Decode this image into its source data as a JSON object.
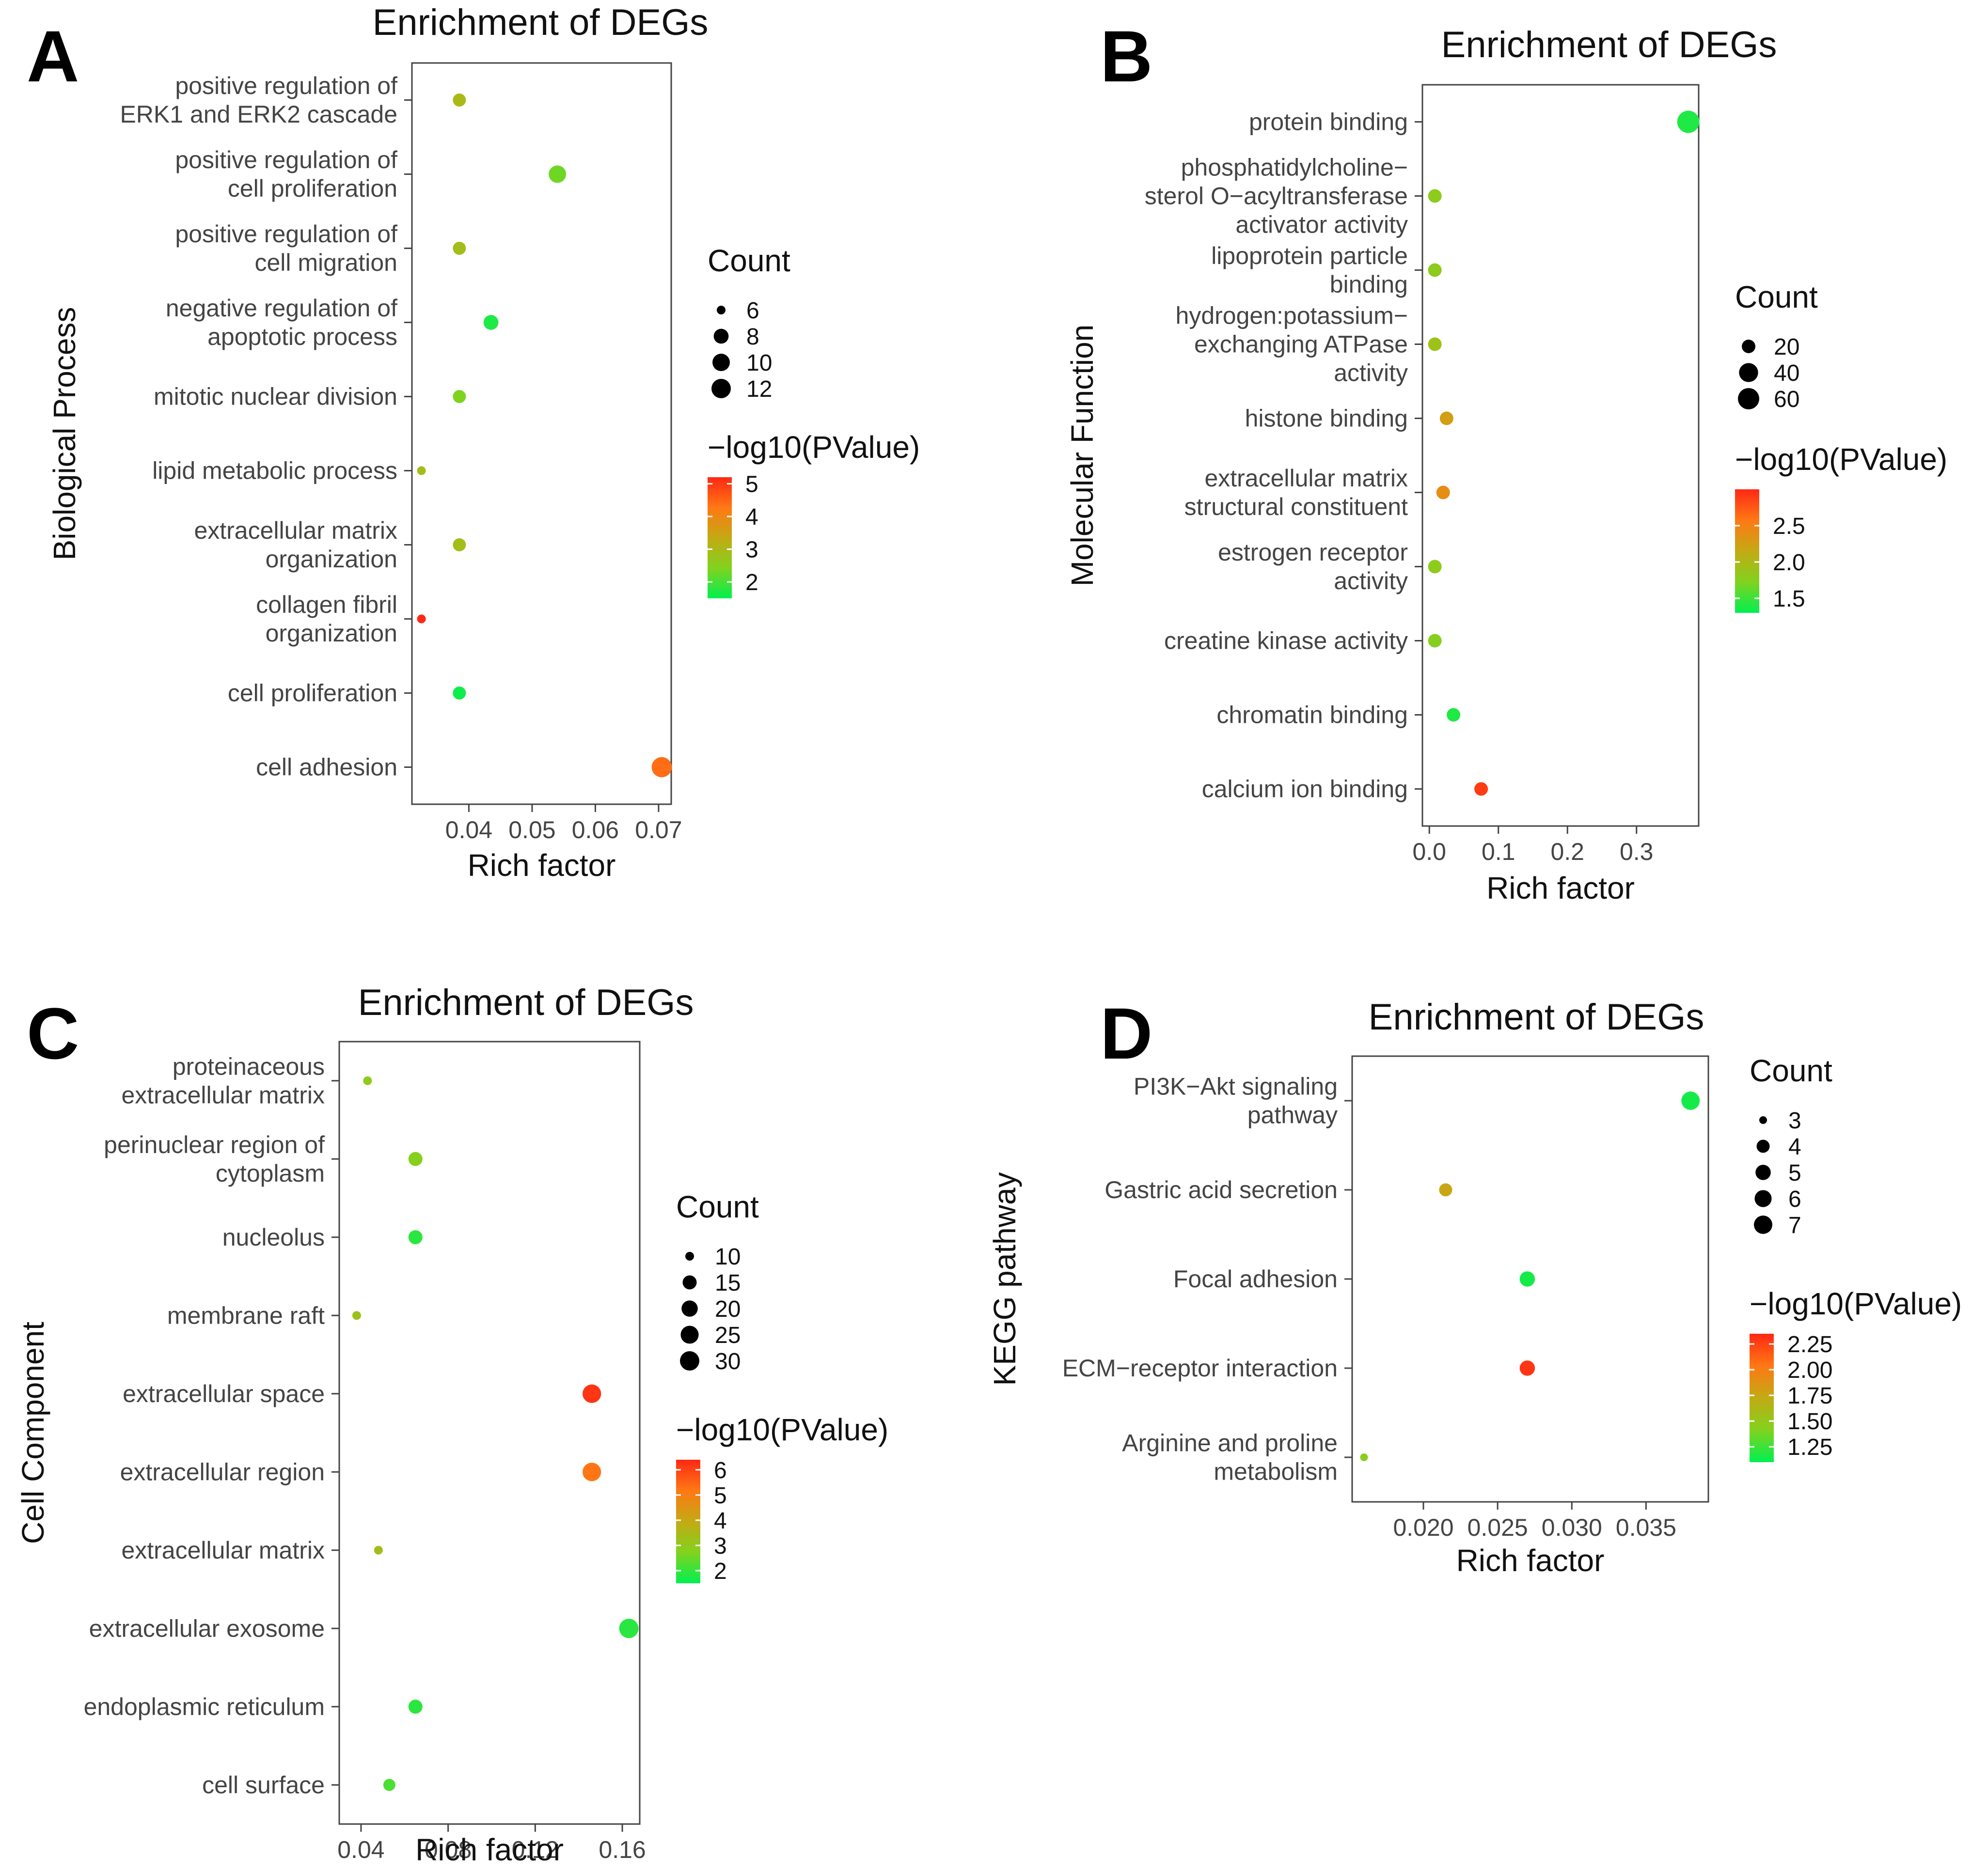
{
  "chart_data": [
    {
      "panel": "A",
      "type": "scatter",
      "title": "Enrichment of DEGs",
      "xlabel": "Rich factor",
      "ylabel": "Biological Process",
      "xlim": [
        0.031,
        0.072
      ],
      "xticks": [
        0.04,
        0.05,
        0.06,
        0.07
      ],
      "xtick_labels": [
        "0.04",
        "0.05",
        "0.06",
        "0.07"
      ],
      "categories": [
        [
          "positive regulation of",
          "ERK1 and ERK2 cascade"
        ],
        [
          "positive regulation of",
          "cell proliferation"
        ],
        [
          "positive regulation of",
          "cell migration"
        ],
        [
          "negative regulation of",
          "apoptotic process"
        ],
        [
          "mitotic nuclear division"
        ],
        [
          "lipid metabolic process"
        ],
        [
          "extracellular matrix",
          "organization"
        ],
        [
          "collagen fibril",
          "organization"
        ],
        [
          "cell proliferation"
        ],
        [
          "cell adhesion"
        ]
      ],
      "rich_factor": [
        0.0385,
        0.054,
        0.0385,
        0.0435,
        0.0385,
        0.0325,
        0.0385,
        0.0325,
        0.0385,
        0.0705
      ],
      "count": [
        7,
        10,
        7,
        8,
        7,
        5,
        7,
        5,
        7,
        13
      ],
      "neg_log10_p": [
        3.0,
        2.3,
        2.9,
        1.7,
        2.4,
        2.9,
        2.9,
        5.2,
        1.6,
        4.4
      ],
      "size_legend": {
        "title": "Count",
        "values": [
          6,
          8,
          10,
          12
        ],
        "labels": [
          "6",
          "8",
          "10",
          "12"
        ]
      },
      "color_legend": {
        "title": "−log10(PValue)",
        "min": 1.5,
        "max": 5.2,
        "ticks": [
          5,
          4,
          3,
          2
        ],
        "tick_labels": [
          "5",
          "4",
          "3",
          "2"
        ]
      }
    },
    {
      "panel": "B",
      "type": "scatter",
      "title": "Enrichment of DEGs",
      "xlabel": "Rich factor",
      "ylabel": "Molecular Function",
      "xlim": [
        -0.01,
        0.39
      ],
      "xticks": [
        0.0,
        0.1,
        0.2,
        0.3
      ],
      "xtick_labels": [
        "0.0",
        "0.1",
        "0.2",
        "0.3"
      ],
      "categories": [
        [
          "protein binding"
        ],
        [
          "phosphatidylcholine−",
          "sterol O−acyltransferase",
          "activator activity"
        ],
        [
          "lipoprotein particle",
          "binding"
        ],
        [
          "hydrogen:potassium−",
          "exchanging ATPase",
          "activity"
        ],
        [
          "histone binding"
        ],
        [
          "extracellular matrix",
          "structural constituent"
        ],
        [
          "estrogen receptor",
          "activity"
        ],
        [
          "creatine kinase activity"
        ],
        [
          "chromatin binding"
        ],
        [
          "calcium ion binding"
        ]
      ],
      "rich_factor": [
        0.375,
        0.008,
        0.008,
        0.008,
        0.025,
        0.02,
        0.008,
        0.008,
        0.035,
        0.075
      ],
      "count": [
        70,
        3,
        3,
        3,
        5,
        4,
        3,
        3,
        8,
        14
      ],
      "neg_log10_p": [
        1.4,
        1.8,
        1.8,
        1.9,
        2.25,
        2.4,
        1.8,
        1.75,
        1.4,
        2.9
      ],
      "size_legend": {
        "title": "Count",
        "values": [
          20,
          40,
          60
        ],
        "labels": [
          "20",
          "40",
          "60"
        ]
      },
      "color_legend": {
        "title": "−log10(PValue)",
        "min": 1.3,
        "max": 3.0,
        "ticks": [
          2.5,
          2.0,
          1.5
        ],
        "tick_labels": [
          "2.5",
          "2.0",
          "1.5"
        ]
      }
    },
    {
      "panel": "C",
      "type": "scatter",
      "title": "Enrichment of DEGs",
      "xlabel": "Rich factor",
      "ylabel": "Cell Component",
      "xlim": [
        0.03,
        0.168
      ],
      "xticks": [
        0.04,
        0.08,
        0.12,
        0.16
      ],
      "xtick_labels": [
        "0.04",
        "0.08",
        "0.12",
        "0.16"
      ],
      "categories": [
        [
          "proteinaceous",
          "extracellular matrix"
        ],
        [
          "perinuclear region of",
          "cytoplasm"
        ],
        [
          "nucleolus"
        ],
        [
          "membrane raft"
        ],
        [
          "extracellular space"
        ],
        [
          "extracellular region"
        ],
        [
          "extracellular matrix"
        ],
        [
          "extracellular exosome"
        ],
        [
          "endoplasmic reticulum"
        ],
        [
          "cell surface"
        ]
      ],
      "rich_factor": [
        0.043,
        0.065,
        0.065,
        0.038,
        0.146,
        0.146,
        0.048,
        0.163,
        0.065,
        0.053
      ],
      "count": [
        10,
        15,
        15,
        8,
        27,
        27,
        10,
        30,
        15,
        12
      ],
      "neg_log10_p": [
        3.0,
        2.8,
        1.9,
        3.2,
        6.2,
        5.2,
        3.3,
        1.9,
        1.9,
        2.2
      ],
      "size_legend": {
        "title": "Count",
        "values": [
          10,
          15,
          20,
          25,
          30
        ],
        "labels": [
          "10",
          "15",
          "20",
          "25",
          "30"
        ]
      },
      "color_legend": {
        "title": "−log10(PValue)",
        "min": 1.5,
        "max": 6.4,
        "ticks": [
          6,
          5,
          4,
          3,
          2
        ],
        "tick_labels": [
          "6",
          "5",
          "4",
          "3",
          "2"
        ]
      }
    },
    {
      "panel": "D",
      "type": "scatter",
      "title": "Enrichment of DEGs",
      "xlabel": "Rich factor",
      "ylabel": "KEGG pathway",
      "xlim": [
        0.0152,
        0.0392
      ],
      "xticks": [
        0.02,
        0.025,
        0.03,
        0.035
      ],
      "xtick_labels": [
        "0.020",
        "0.025",
        "0.030",
        "0.035"
      ],
      "categories": [
        [
          "PI3K−Akt signaling",
          "pathway"
        ],
        [
          "Gastric acid secretion"
        ],
        [
          "Focal adhesion"
        ],
        [
          "ECM−receptor interaction"
        ],
        [
          "Arginine and proline",
          "metabolism"
        ]
      ],
      "rich_factor": [
        0.038,
        0.0215,
        0.027,
        0.027,
        0.016
      ],
      "count": [
        7,
        4,
        5,
        5,
        3
      ],
      "neg_log10_p": [
        1.15,
        1.75,
        1.15,
        2.3,
        1.45
      ],
      "size_legend": {
        "title": "Count",
        "values": [
          3,
          4,
          5,
          6,
          7
        ],
        "labels": [
          "3",
          "4",
          "5",
          "6",
          "7"
        ]
      },
      "color_legend": {
        "title": "−log10(PValue)",
        "min": 1.1,
        "max": 2.35,
        "ticks": [
          2.25,
          2.0,
          1.75,
          1.5,
          1.25
        ],
        "tick_labels": [
          "2.25",
          "2.00",
          "1.75",
          "1.50",
          "1.25"
        ]
      }
    }
  ]
}
